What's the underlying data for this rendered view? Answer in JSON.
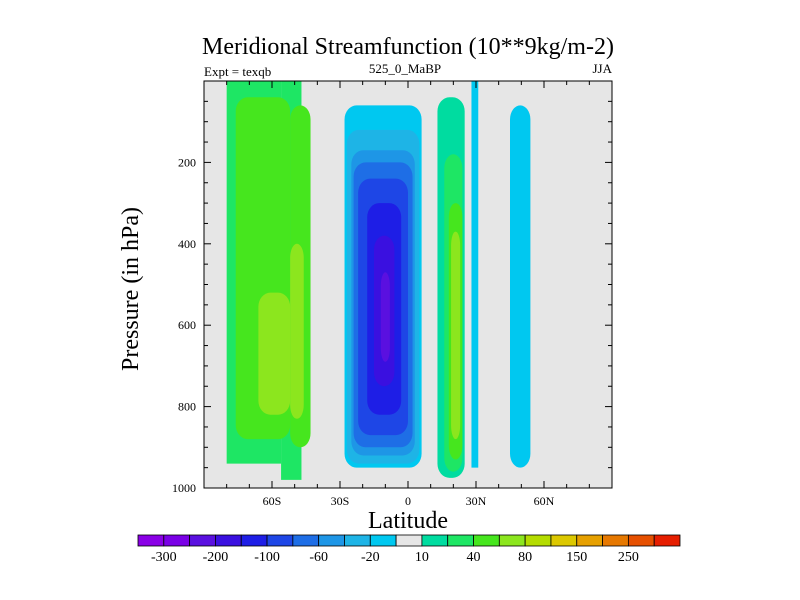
{
  "chart_data": {
    "type": "contour",
    "title": "Meridional Streamfunction (10**9kg/m-2)",
    "left_string": "Expt = texqb",
    "center_string": "525_0_MaBP",
    "right_string": "JJA",
    "xlabel": "Latitude",
    "ylabel": "Pressure (in hPa)",
    "xlim": [
      -90,
      90
    ],
    "ylim": [
      1000,
      0
    ],
    "x_ticks": [
      {
        "value": -60,
        "label": "60S"
      },
      {
        "value": -30,
        "label": "30S"
      },
      {
        "value": 0,
        "label": "0"
      },
      {
        "value": 30,
        "label": "30N"
      },
      {
        "value": 60,
        "label": "60N"
      }
    ],
    "y_ticks": [
      {
        "value": 200,
        "label": "200"
      },
      {
        "value": 400,
        "label": "400"
      },
      {
        "value": 600,
        "label": "600"
      },
      {
        "value": 800,
        "label": "800"
      },
      {
        "value": 1000,
        "label": "1000"
      }
    ],
    "contour_levels": [
      -300,
      -250,
      -200,
      -150,
      -100,
      -80,
      -60,
      -40,
      -20,
      -10,
      10,
      20,
      40,
      60,
      80,
      100,
      150,
      200,
      250,
      300
    ],
    "colorbar_labels": [
      {
        "after_level": -300,
        "label": "-300"
      },
      {
        "after_level": -200,
        "label": "-200"
      },
      {
        "after_level": -100,
        "label": "-100"
      },
      {
        "after_level": -60,
        "label": "-60"
      },
      {
        "after_level": -20,
        "label": "-20"
      },
      {
        "after_level": 10,
        "label": "10"
      },
      {
        "after_level": 40,
        "label": "40"
      },
      {
        "after_level": 80,
        "label": "80"
      },
      {
        "after_level": 150,
        "label": "150"
      },
      {
        "after_level": 250,
        "label": "250"
      }
    ],
    "colorbar_colors": [
      "#8a00e6",
      "#7a00e6",
      "#5a10e0",
      "#3a10e0",
      "#1e1ee6",
      "#1e46e6",
      "#1e6ee6",
      "#1e96e6",
      "#1eb4e6",
      "#00c8f0",
      "#e6e6e6",
      "#00dca0",
      "#1ee664",
      "#46e61e",
      "#8ce61e",
      "#b4dc00",
      "#dcc800",
      "#e6a000",
      "#e67800",
      "#e65000",
      "#e61e00"
    ],
    "background_color": "#e6e6e6",
    "cells": [
      {
        "lat": [
          -80,
          -56
        ],
        "p": [
          0,
          940
        ],
        "level": 20
      },
      {
        "lat": [
          -56,
          -47
        ],
        "p": [
          0,
          980
        ],
        "level": 20
      },
      {
        "lat": [
          -76,
          -52
        ],
        "p": [
          40,
          880
        ],
        "level": 40
      },
      {
        "lat": [
          -52,
          -43
        ],
        "p": [
          60,
          900
        ],
        "level": 40
      },
      {
        "lat": [
          -66,
          -52
        ],
        "p": [
          520,
          820
        ],
        "level": 60
      },
      {
        "lat": [
          -52,
          -46
        ],
        "p": [
          400,
          830
        ],
        "level": 60
      },
      {
        "lat": [
          -34,
          -26
        ],
        "p": [
          0,
          960
        ],
        "level": -10
      },
      {
        "lat": [
          -26,
          10
        ],
        "p": [
          0,
          980
        ],
        "level": -10
      },
      {
        "lat": [
          -28,
          6
        ],
        "p": [
          60,
          950
        ],
        "level": -20
      },
      {
        "lat": [
          -27,
          5
        ],
        "p": [
          120,
          940
        ],
        "level": -40
      },
      {
        "lat": [
          -25,
          3
        ],
        "p": [
          170,
          920
        ],
        "level": -60
      },
      {
        "lat": [
          -24,
          2
        ],
        "p": [
          200,
          900
        ],
        "level": -80
      },
      {
        "lat": [
          -22,
          0
        ],
        "p": [
          240,
          870
        ],
        "level": -100
      },
      {
        "lat": [
          -18,
          -3
        ],
        "p": [
          300,
          820
        ],
        "level": -150
      },
      {
        "lat": [
          -15,
          -6
        ],
        "p": [
          380,
          750
        ],
        "level": -200
      },
      {
        "lat": [
          -12,
          -8
        ],
        "p": [
          470,
          690
        ],
        "level": -250
      },
      {
        "lat": [
          13,
          25
        ],
        "p": [
          40,
          975
        ],
        "level": 10
      },
      {
        "lat": [
          16,
          24
        ],
        "p": [
          180,
          960
        ],
        "level": 20
      },
      {
        "lat": [
          18,
          24
        ],
        "p": [
          300,
          930
        ],
        "level": 40
      },
      {
        "lat": [
          19,
          23
        ],
        "p": [
          370,
          880
        ],
        "level": 60
      },
      {
        "lat": [
          28,
          33
        ],
        "p": [
          0,
          970
        ],
        "level": -10
      },
      {
        "lat": [
          28,
          31
        ],
        "p": [
          0,
          950
        ],
        "level": -20
      },
      {
        "lat": [
          42,
          58
        ],
        "p": [
          0,
          980
        ],
        "level": -10
      },
      {
        "lat": [
          45,
          54
        ],
        "p": [
          60,
          950
        ],
        "level": -20
      }
    ]
  }
}
